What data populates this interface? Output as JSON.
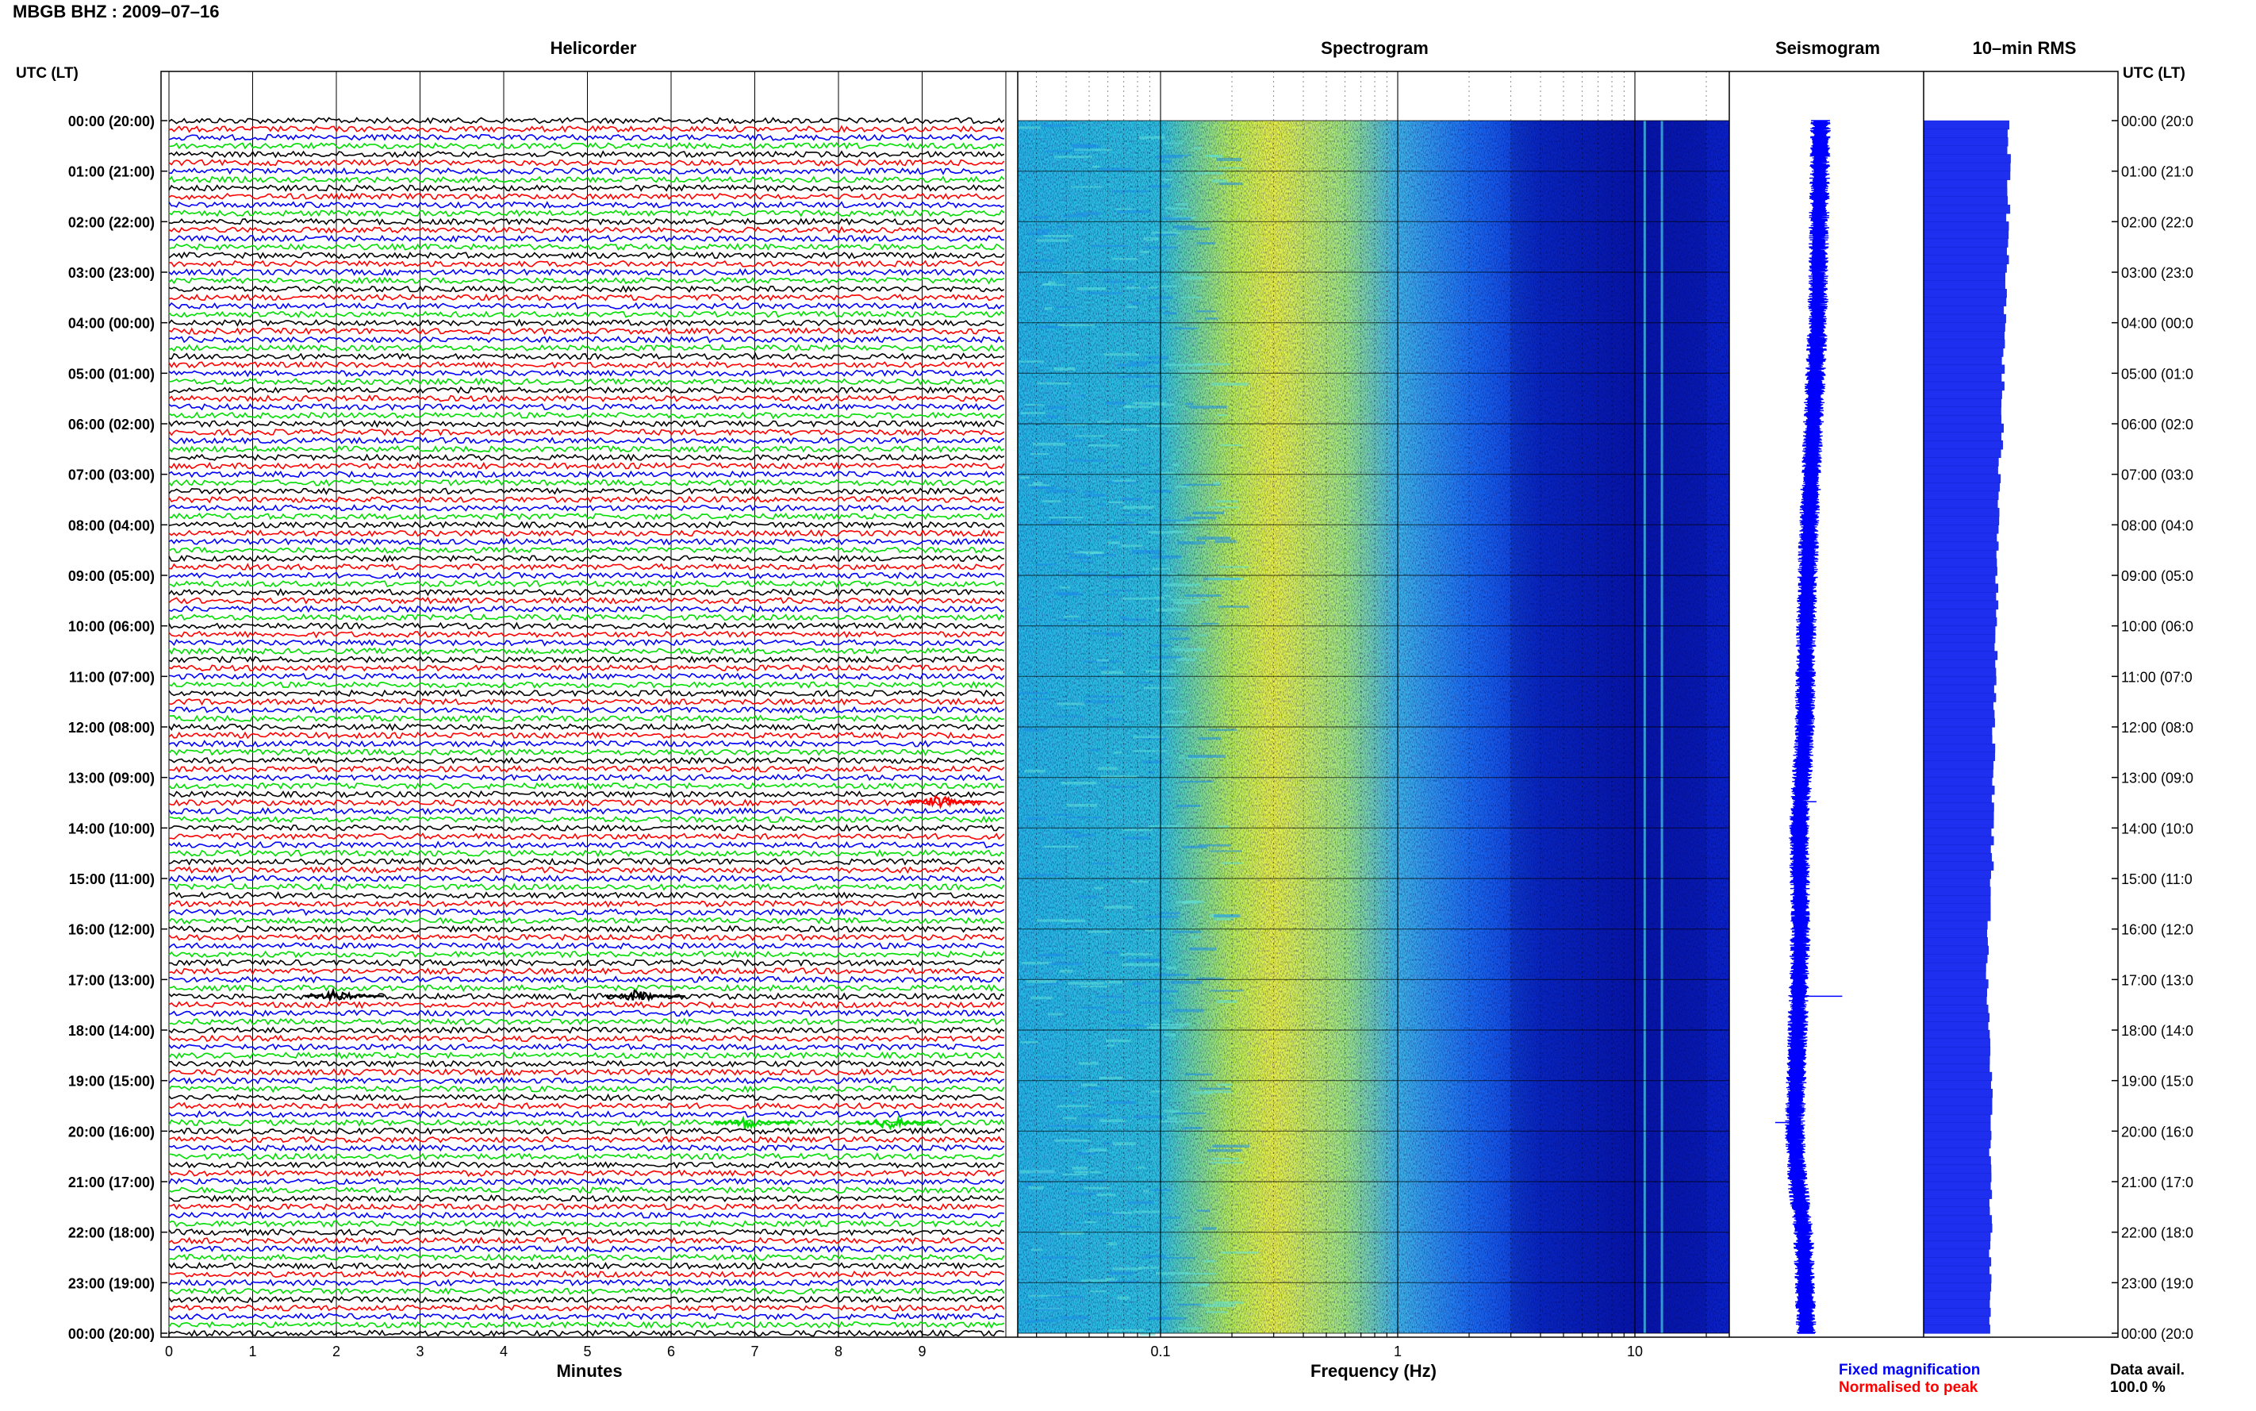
{
  "title": "MBGB BHZ : 2009–07–16",
  "panels": {
    "helicorder": "Helicorder",
    "spectrogram": "Spectrogram",
    "seismogram": "Seismogram",
    "rms": "10–min RMS"
  },
  "left_axis_title": "UTC (LT)",
  "right_axis_title": "UTC (LT)",
  "legend": {
    "fixed": "Fixed magnification",
    "normalised": "Normalised to peak",
    "fixed_color": "#0000ff",
    "normalised_color": "#ff0000"
  },
  "data_avail": {
    "label": "Data avail.",
    "value": "100.0 %"
  },
  "chart_data": [
    {
      "type": "line",
      "name": "helicorder",
      "title": "Helicorder",
      "xlabel": "Minutes",
      "x_ticks": [
        "0",
        "1",
        "2",
        "3",
        "4",
        "5",
        "6",
        "7",
        "8",
        "9"
      ],
      "xlim": [
        0,
        10
      ],
      "hour_labels": [
        "00:00 (20:00)",
        "01:00 (21:00)",
        "02:00 (22:00)",
        "03:00 (23:00)",
        "04:00 (00:00)",
        "05:00 (01:00)",
        "06:00 (02:00)",
        "07:00 (03:00)",
        "08:00 (04:00)",
        "09:00 (05:00)",
        "10:00 (06:00)",
        "11:00 (07:00)",
        "12:00 (08:00)",
        "13:00 (09:00)",
        "14:00 (10:00)",
        "15:00 (11:00)",
        "16:00 (12:00)",
        "17:00 (13:00)",
        "18:00 (14:00)",
        "19:00 (15:00)",
        "20:00 (16:00)",
        "21:00 (17:00)",
        "22:00 (18:00)",
        "23:00 (19:00)",
        "00:00 (20:00)"
      ],
      "right_labels": [
        "00:00 (20:0",
        "01:00 (21:0",
        "02:00 (22:0",
        "03:00 (23:0",
        "04:00 (00:0",
        "05:00 (01:0",
        "06:00 (02:0",
        "07:00 (03:0",
        "08:00 (04:0",
        "09:00 (05:0",
        "10:00 (06:0",
        "11:00 (07:0",
        "12:00 (08:0",
        "13:00 (09:0",
        "14:00 (10:0",
        "15:00 (11:0",
        "16:00 (12:0",
        "17:00 (13:0",
        "18:00 (14:0",
        "19:00 (15:0",
        "20:00 (16:0",
        "21:00 (17:0",
        "22:00 (18:0",
        "23:00 (19:0",
        "00:00 (20:0"
      ],
      "line_colors": [
        "#000000",
        "#ff0000",
        "#0000ff",
        "#00dd00"
      ],
      "traces_per_hour": 6,
      "events": [
        {
          "minute": 9.2,
          "hour": 13.48,
          "color": "#ff0000"
        },
        {
          "minute": 2.0,
          "hour": 17.33,
          "color": "#000000"
        },
        {
          "minute": 5.6,
          "hour": 17.33,
          "color": "#000000"
        },
        {
          "minute": 8.6,
          "hour": 19.83,
          "color": "#00dd00"
        },
        {
          "minute": 6.9,
          "hour": 19.83,
          "color": "#00dd00"
        }
      ]
    },
    {
      "type": "heatmap",
      "name": "spectrogram",
      "title": "Spectrogram",
      "xlabel": "Frequency (Hz)",
      "x_scale": "log",
      "xlim": [
        0.025,
        25
      ],
      "x_ticks": [
        0.1,
        1,
        10
      ],
      "x_tick_labels": [
        "0.1",
        "1",
        "10"
      ],
      "ylim_hours": [
        0,
        24
      ],
      "color_stops": [
        {
          "hz": 0.025,
          "color": "#27b8e6"
        },
        {
          "hz": 0.1,
          "color": "#2fc3df"
        },
        {
          "hz": 0.2,
          "color": "#b8ef5a"
        },
        {
          "hz": 0.3,
          "color": "#e9f148"
        },
        {
          "hz": 0.6,
          "color": "#9fe882"
        },
        {
          "hz": 1.0,
          "color": "#3fb5e8"
        },
        {
          "hz": 2.0,
          "color": "#1c6ef0"
        },
        {
          "hz": 4.0,
          "color": "#0a2fd6"
        },
        {
          "hz": 10.0,
          "color": "#0818b4"
        },
        {
          "hz": 25.0,
          "color": "#0a22c8"
        }
      ],
      "lines_hz": [
        11,
        13
      ]
    },
    {
      "type": "line",
      "name": "seismogram",
      "title": "Seismogram",
      "color": "#0000ff",
      "hours": [
        0,
        2,
        4,
        6,
        8,
        10,
        12,
        13,
        14,
        16,
        17,
        18,
        20,
        21,
        22,
        24
      ],
      "center_offset": [
        0.0,
        0.1,
        0.2,
        0.5,
        0.8,
        1.0,
        1.1,
        1.3,
        1.5,
        1.4,
        1.5,
        1.6,
        1.8,
        1.6,
        1.2,
        1.0
      ],
      "amplitude": [
        1.0,
        1.0,
        1.0,
        1.0,
        1.0,
        1.0,
        1.0,
        1.0,
        1.0,
        1.0,
        1.0,
        1.0,
        1.0,
        1.0,
        1.0,
        1.0
      ]
    },
    {
      "type": "bar",
      "name": "rms",
      "title": "10–min RMS",
      "color": "#1e2ff0",
      "orientation": "horizontal",
      "interval_minutes": 10,
      "hours": [
        0,
        1,
        2,
        3,
        4,
        5,
        6,
        7,
        8,
        9,
        10,
        11,
        12,
        13,
        14,
        15,
        16,
        17,
        18,
        19,
        20,
        21,
        22,
        23,
        24
      ],
      "relative_values": [
        0.98,
        1.0,
        0.99,
        0.98,
        0.95,
        0.93,
        0.92,
        0.89,
        0.88,
        0.86,
        0.85,
        0.85,
        0.82,
        0.82,
        0.81,
        0.8,
        0.76,
        0.74,
        0.76,
        0.8,
        0.78,
        0.78,
        0.79,
        0.78,
        0.78
      ]
    }
  ]
}
